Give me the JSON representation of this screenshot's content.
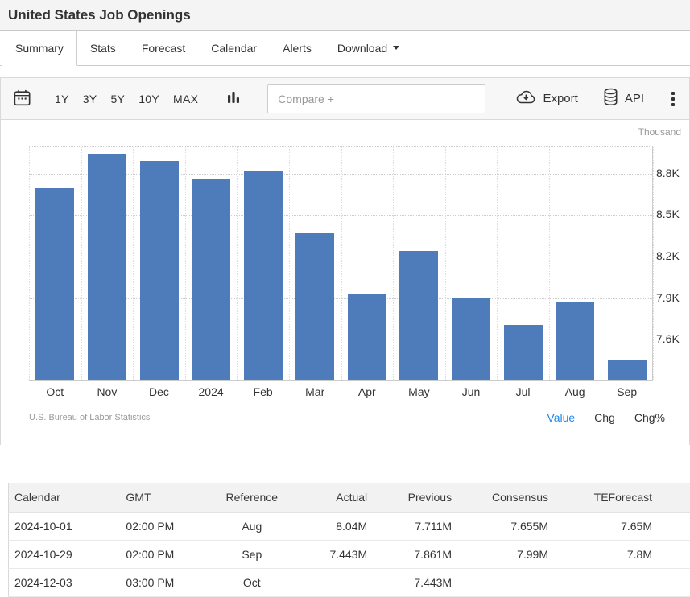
{
  "header": {
    "title": "United States Job Openings"
  },
  "tabs": [
    {
      "label": "Summary",
      "active": true
    },
    {
      "label": "Stats",
      "active": false
    },
    {
      "label": "Forecast",
      "active": false
    },
    {
      "label": "Calendar",
      "active": false
    },
    {
      "label": "Alerts",
      "active": false
    },
    {
      "label": "Download",
      "active": false,
      "caret": true
    }
  ],
  "toolbar": {
    "ranges": [
      "1Y",
      "3Y",
      "5Y",
      "10Y",
      "MAX"
    ],
    "compare_placeholder": "Compare +",
    "export_label": "Export",
    "api_label": "API",
    "icons": {
      "date": "calendar-icon",
      "chart_type": "column-chart-icon",
      "export": "cloud-download-icon",
      "api": "database-icon",
      "more": "kebab-icon",
      "download": "caret-down-icon"
    }
  },
  "chart_data": {
    "type": "bar",
    "title": "United States Job Openings",
    "unit_label": "Thousand",
    "categories": [
      "Oct",
      "Nov",
      "Dec",
      "2024",
      "Feb",
      "Mar",
      "Apr",
      "May",
      "Jun",
      "Jul",
      "Aug",
      "Sep"
    ],
    "values": [
      8685,
      8925,
      8880,
      8748,
      8813,
      8355,
      7919,
      8230,
      7891,
      7693,
      7861,
      7443
    ],
    "yticks": [
      {
        "value": 8800,
        "label": "8.8K"
      },
      {
        "value": 8500,
        "label": "8.5K"
      },
      {
        "value": 8200,
        "label": "8.2K"
      },
      {
        "value": 7900,
        "label": "7.9K"
      },
      {
        "value": 7600,
        "label": "7.6K"
      }
    ],
    "ylim": [
      7300,
      8990
    ],
    "xlabel": "",
    "ylabel": "Thousand",
    "grid": true,
    "legend_position": "none",
    "bar_color": "#4e7cba",
    "accent_color": "#1e87ee",
    "source": "U.S. Bureau of Labor Statistics",
    "series_links": [
      {
        "label": "Value",
        "active": true
      },
      {
        "label": "Chg",
        "active": false
      },
      {
        "label": "Chg%",
        "active": false
      }
    ]
  },
  "table": {
    "columns": [
      "Calendar",
      "GMT",
      "Reference",
      "Actual",
      "Previous",
      "Consensus",
      "TEForecast"
    ],
    "rows": [
      [
        "2024-10-01",
        "02:00 PM",
        "Aug",
        "8.04M",
        "7.711M",
        "7.655M",
        "7.65M"
      ],
      [
        "2024-10-29",
        "02:00 PM",
        "Sep",
        "7.443M",
        "7.861M",
        "7.99M",
        "7.8M"
      ],
      [
        "2024-12-03",
        "03:00 PM",
        "Oct",
        "",
        "7.443M",
        "",
        ""
      ]
    ]
  }
}
